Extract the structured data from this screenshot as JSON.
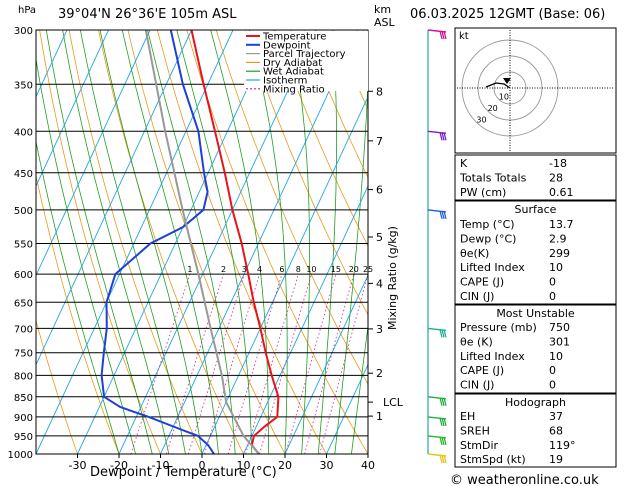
{
  "header": {
    "pressure_unit": "hPa",
    "location": "39°04'N  26°36'E  105m  ASL",
    "km_unit": "km",
    "asl_unit": "ASL",
    "date": "06.03.2025  12GMT  (Base: 06)"
  },
  "footer": {
    "credit": "© weatheronline.co.uk"
  },
  "chart_data": {
    "type": "skew-t",
    "xlabel": "Dewpoint / Temperature (°C)",
    "ylabel_right": "Mixing Ratio (g/kg)",
    "pressure_levels": [
      300,
      350,
      400,
      450,
      500,
      550,
      600,
      650,
      700,
      750,
      800,
      850,
      900,
      950,
      1000
    ],
    "temp_ticks": [
      -30,
      -20,
      -10,
      0,
      10,
      20,
      30,
      40
    ],
    "temp_range_at_1000": [
      -40,
      40
    ],
    "km_ticks": [
      {
        "label": "8",
        "p": 357
      },
      {
        "label": "7",
        "p": 411
      },
      {
        "label": "6",
        "p": 472
      },
      {
        "label": "5",
        "p": 540
      },
      {
        "label": "4",
        "p": 616
      },
      {
        "label": "3",
        "p": 701
      },
      {
        "label": "2",
        "p": 795
      },
      {
        "label": "1",
        "p": 898
      },
      {
        "label": "LCL",
        "p": 863
      }
    ],
    "mixing_ratio_labels": [
      "1",
      "2",
      "3",
      "4",
      "6",
      "8",
      "10",
      "15",
      "20",
      "25"
    ],
    "legend": [
      {
        "name": "Temperature",
        "color": "#e8131a"
      },
      {
        "name": "Dewpoint",
        "color": "#1f3fd6"
      },
      {
        "name": "Parcel Trajectory",
        "color": "#999999"
      },
      {
        "name": "Dry Adiabat",
        "color": "#e89a1e"
      },
      {
        "name": "Wet Adiabat",
        "color": "#1fa01f"
      },
      {
        "name": "Isotherm",
        "color": "#22a6e6"
      },
      {
        "name": "Mixing Ratio",
        "color": "#cc2299"
      }
    ],
    "series": [
      {
        "name": "Temperature",
        "points": [
          [
            1000,
            13.7
          ],
          [
            975,
            11
          ],
          [
            950,
            10.5
          ],
          [
            925,
            12
          ],
          [
            900,
            14
          ],
          [
            850,
            12
          ],
          [
            800,
            8
          ],
          [
            750,
            4
          ],
          [
            700,
            0
          ],
          [
            650,
            -4.5
          ],
          [
            600,
            -9
          ],
          [
            550,
            -14
          ],
          [
            500,
            -20
          ],
          [
            450,
            -26
          ],
          [
            400,
            -33
          ],
          [
            350,
            -41
          ],
          [
            300,
            -50
          ]
        ]
      },
      {
        "name": "Dewpoint",
        "points": [
          [
            1000,
            2.9
          ],
          [
            975,
            0.5
          ],
          [
            950,
            -3
          ],
          [
            925,
            -10
          ],
          [
            900,
            -17
          ],
          [
            875,
            -25
          ],
          [
            850,
            -30
          ],
          [
            800,
            -33
          ],
          [
            750,
            -35
          ],
          [
            700,
            -37
          ],
          [
            650,
            -40
          ],
          [
            600,
            -41
          ],
          [
            550,
            -36
          ],
          [
            525,
            -30
          ],
          [
            500,
            -27
          ],
          [
            475,
            -28
          ],
          [
            450,
            -31
          ],
          [
            400,
            -37
          ],
          [
            350,
            -46
          ],
          [
            300,
            -55
          ]
        ]
      },
      {
        "name": "Parcel Trajectory",
        "points": [
          [
            1000,
            13.7
          ],
          [
            950,
            8
          ],
          [
            900,
            3.5
          ],
          [
            863,
            0
          ],
          [
            800,
            -4
          ],
          [
            700,
            -12
          ],
          [
            600,
            -21
          ],
          [
            500,
            -32
          ],
          [
            400,
            -45
          ],
          [
            300,
            -61
          ]
        ]
      }
    ],
    "wind_barbs": [
      "300",
      "400",
      "500",
      "700",
      "850",
      "900",
      "950",
      "1000"
    ],
    "hodograph": {
      "unit": "kt",
      "ring_labels": [
        "10",
        "20",
        "30"
      ]
    }
  },
  "indices": [
    {
      "label": "K",
      "value": "-18"
    },
    {
      "label": "Totals Totals",
      "value": "28"
    },
    {
      "label": "PW (cm)",
      "value": "0.61"
    }
  ],
  "surface": {
    "title": "Surface",
    "rows": [
      {
        "label": "Temp (°C)",
        "value": "13.7"
      },
      {
        "label": "Dewp (°C)",
        "value": "2.9"
      },
      {
        "label": "θe(K)",
        "value": "299"
      },
      {
        "label": "Lifted Index",
        "value": "10"
      },
      {
        "label": "CAPE (J)",
        "value": "0"
      },
      {
        "label": "CIN (J)",
        "value": "0"
      }
    ]
  },
  "most_unstable": {
    "title": "Most Unstable",
    "rows": [
      {
        "label": "Pressure (mb)",
        "value": "750"
      },
      {
        "label": "θe (K)",
        "value": "301"
      },
      {
        "label": "Lifted Index",
        "value": "10"
      },
      {
        "label": "CAPE (J)",
        "value": "0"
      },
      {
        "label": "CIN (J)",
        "value": "0"
      }
    ]
  },
  "hodograph_table": {
    "title": "Hodograph",
    "rows": [
      {
        "label": "EH",
        "value": "37"
      },
      {
        "label": "SREH",
        "value": "68"
      },
      {
        "label": "StmDir",
        "value": "119°"
      },
      {
        "label": "StmSpd (kt)",
        "value": "19"
      }
    ]
  }
}
